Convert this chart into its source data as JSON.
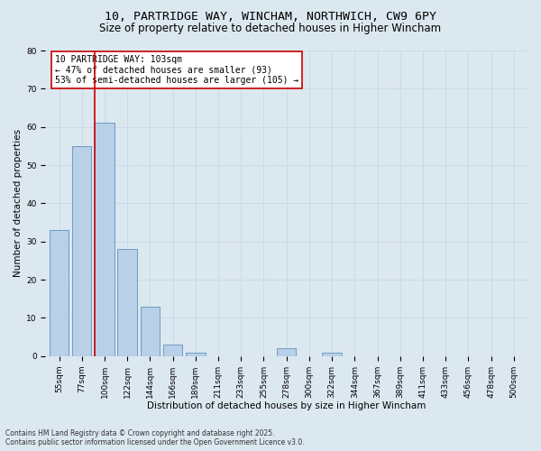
{
  "title1": "10, PARTRIDGE WAY, WINCHAM, NORTHWICH, CW9 6PY",
  "title2": "Size of property relative to detached houses in Higher Wincham",
  "xlabel": "Distribution of detached houses by size in Higher Wincham",
  "ylabel": "Number of detached properties",
  "categories": [
    "55sqm",
    "77sqm",
    "100sqm",
    "122sqm",
    "144sqm",
    "166sqm",
    "189sqm",
    "211sqm",
    "233sqm",
    "255sqm",
    "278sqm",
    "300sqm",
    "322sqm",
    "344sqm",
    "367sqm",
    "389sqm",
    "411sqm",
    "433sqm",
    "456sqm",
    "478sqm",
    "500sqm"
  ],
  "values": [
    33,
    55,
    61,
    28,
    13,
    3,
    1,
    0,
    0,
    0,
    2,
    0,
    1,
    0,
    0,
    0,
    0,
    0,
    0,
    0,
    0
  ],
  "bar_color": "#b8d0e8",
  "bar_edge_color": "#6090c0",
  "red_line_index": 2,
  "red_line_color": "#cc0000",
  "annotation_text": "10 PARTRIDGE WAY: 103sqm\n← 47% of detached houses are smaller (93)\n53% of semi-detached houses are larger (105) →",
  "annotation_box_color": "#ffffff",
  "annotation_box_edge": "#cc0000",
  "ylim": [
    0,
    80
  ],
  "yticks": [
    0,
    10,
    20,
    30,
    40,
    50,
    60,
    70,
    80
  ],
  "grid_color": "#c8d8e8",
  "bg_color": "#dce8f0",
  "footnote": "Contains HM Land Registry data © Crown copyright and database right 2025.\nContains public sector information licensed under the Open Government Licence v3.0.",
  "title_fontsize": 9.5,
  "subtitle_fontsize": 8.5,
  "axis_fontsize": 7.5,
  "tick_fontsize": 6.5,
  "annot_fontsize": 7.0,
  "footnote_fontsize": 5.5
}
